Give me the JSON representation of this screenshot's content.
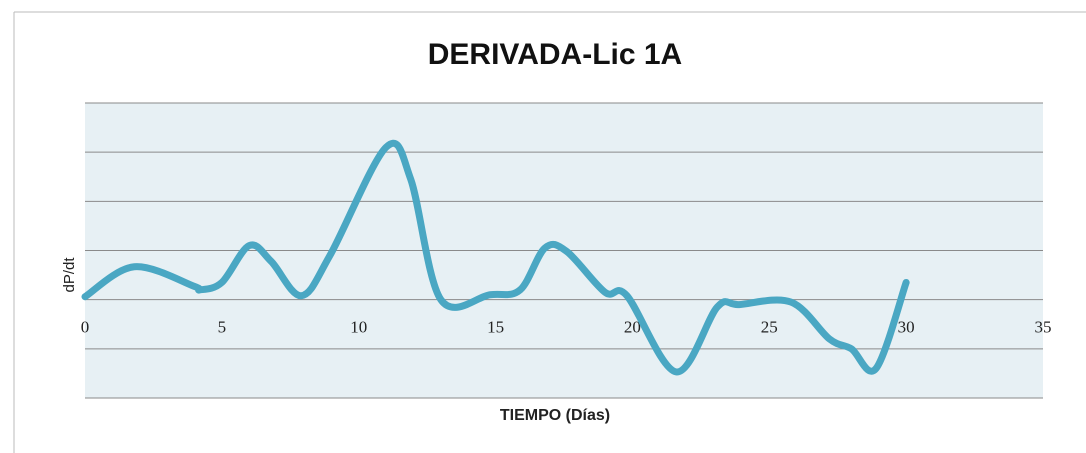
{
  "chart_data": {
    "type": "line",
    "title": "DERIVADA-Lic 1A",
    "xlabel": "TIEMPO (Días)",
    "ylabel": "dP/dt",
    "x": [
      0,
      1.8,
      4,
      4.2,
      5,
      6,
      6.8,
      7.9,
      8.95,
      11,
      11.9,
      13,
      14.8,
      15.9,
      16.8,
      17.6,
      19,
      19.8,
      21.6,
      23.1,
      23.9,
      25.8,
      27.2,
      28,
      28.9,
      30
    ],
    "series": [
      {
        "name": "dP/dt",
        "color": "#4aa7c3",
        "values": [
          0.06,
          0.67,
          0.27,
          0.2,
          0.35,
          1.1,
          0.78,
          0.08,
          0.9,
          3.1,
          2.45,
          0,
          0.1,
          0.2,
          1.05,
          0.98,
          0.15,
          0.08,
          -1.47,
          -0.15,
          -0.1,
          -0.05,
          -0.8,
          -1.0,
          -1.4,
          0.35
        ]
      }
    ],
    "xlim": [
      0,
      35
    ],
    "xticks": [
      0,
      5,
      10,
      15,
      20,
      25,
      30,
      35
    ],
    "ylim": [
      -2,
      4
    ],
    "yticks": [
      -2,
      -1,
      0,
      1,
      2,
      3,
      4
    ],
    "grid": true
  }
}
